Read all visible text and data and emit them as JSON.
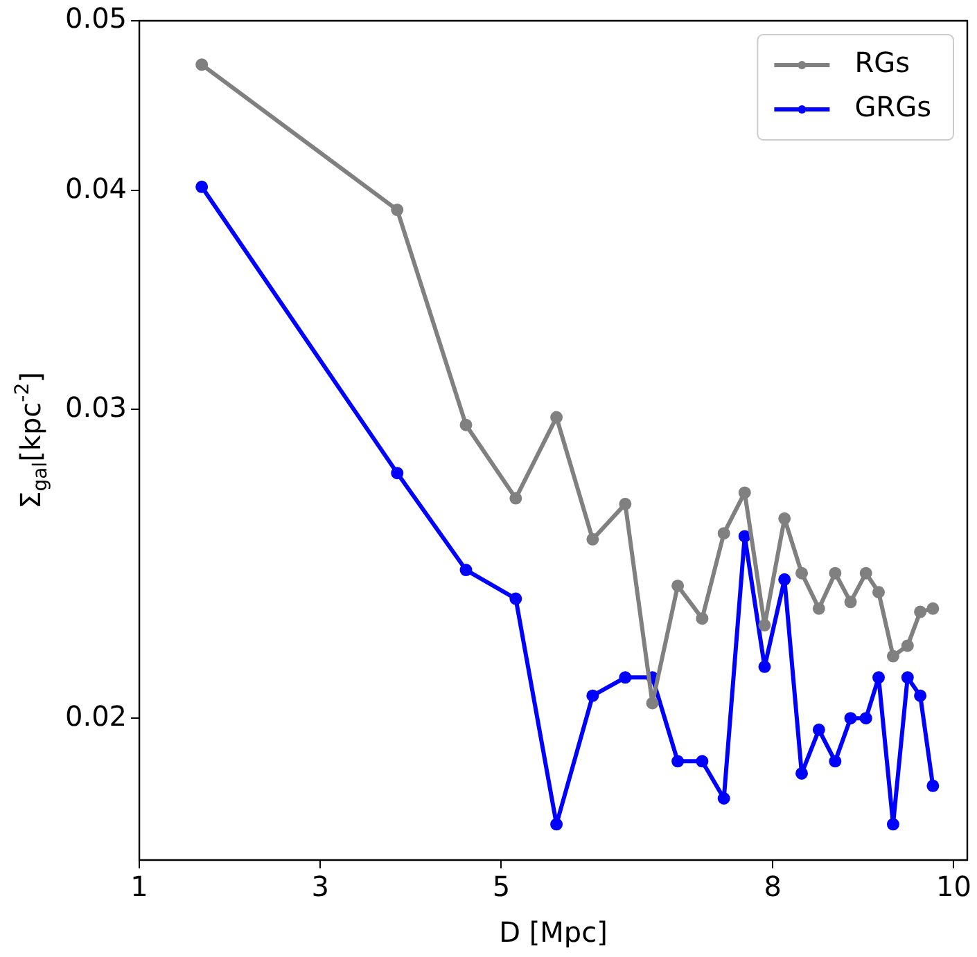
{
  "chart_data": {
    "type": "line",
    "xlabel": "D [Mpc]",
    "ylabel": "Σ$_{gal}$[kpc$^{-2}$]",
    "x": [
      1.69,
      3.85,
      4.61,
      5.16,
      5.61,
      6.01,
      6.37,
      6.67,
      6.95,
      7.22,
      7.46,
      7.69,
      7.91,
      8.13,
      8.32,
      8.51,
      8.69,
      8.86,
      9.03,
      9.17,
      9.33,
      9.49,
      9.63,
      9.77
    ],
    "series": [
      {
        "name": "RGs",
        "color": "#808080",
        "values": [
          0.0472,
          0.039,
          0.0294,
          0.0267,
          0.0297,
          0.0253,
          0.0265,
          0.0204,
          0.0238,
          0.0228,
          0.0255,
          0.0269,
          0.0226,
          0.026,
          0.0242,
          0.0231,
          0.0242,
          0.0233,
          0.0242,
          0.0236,
          0.0217,
          0.022,
          0.023,
          0.0231
        ]
      },
      {
        "name": "GRGs",
        "color": "#0000ff",
        "values": [
          0.0402,
          0.0276,
          0.0243,
          0.0234,
          0.0174,
          0.0206,
          0.0211,
          0.0211,
          0.0189,
          0.0189,
          0.018,
          0.0254,
          0.0214,
          0.024,
          0.0186,
          0.0197,
          0.0189,
          0.02,
          0.02,
          0.0211,
          0.0174,
          0.0211,
          0.0206,
          0.0183
        ]
      }
    ],
    "xlim": [
      1,
      10.15
    ],
    "xticks": [
      1,
      3,
      5,
      8,
      10
    ],
    "ylim": [
      0.0166,
      0.05
    ],
    "yticks": [
      0.02,
      0.03,
      0.04,
      0.05
    ],
    "log": "y",
    "grid": false,
    "legend": "top right",
    "marker": "circle",
    "line_style": "solid"
  }
}
